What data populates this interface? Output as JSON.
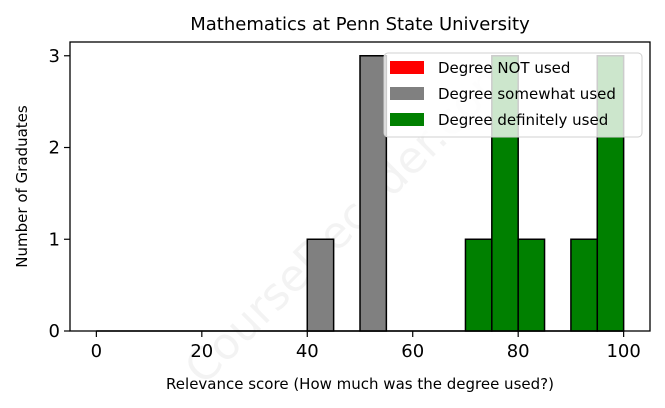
{
  "chart_data": {
    "type": "bar",
    "title": "Mathematics at Penn State University",
    "xlabel": "Relevance score (How much was the degree used?)",
    "ylabel": "Number of Graduates",
    "xlim": [
      -5,
      105
    ],
    "ylim": [
      0,
      3.15
    ],
    "xticks": [
      0,
      20,
      40,
      60,
      80,
      100
    ],
    "yticks": [
      0,
      1,
      2,
      3
    ],
    "bin_width": 5,
    "grid": false,
    "legend_position": "top-right",
    "series": [
      {
        "name": "Degree NOT used",
        "color": "#ff0000",
        "bins": []
      },
      {
        "name": "Degree somewhat used",
        "color": "#808080",
        "bins": [
          {
            "x": 40,
            "count": 1
          },
          {
            "x": 50,
            "count": 3
          }
        ]
      },
      {
        "name": "Degree definitely used",
        "color": "#008000",
        "bins": [
          {
            "x": 70,
            "count": 1
          },
          {
            "x": 75,
            "count": 3
          },
          {
            "x": 80,
            "count": 1
          },
          {
            "x": 90,
            "count": 1
          },
          {
            "x": 95,
            "count": 3
          }
        ]
      }
    ],
    "watermark": "CourseDecoder.com"
  }
}
